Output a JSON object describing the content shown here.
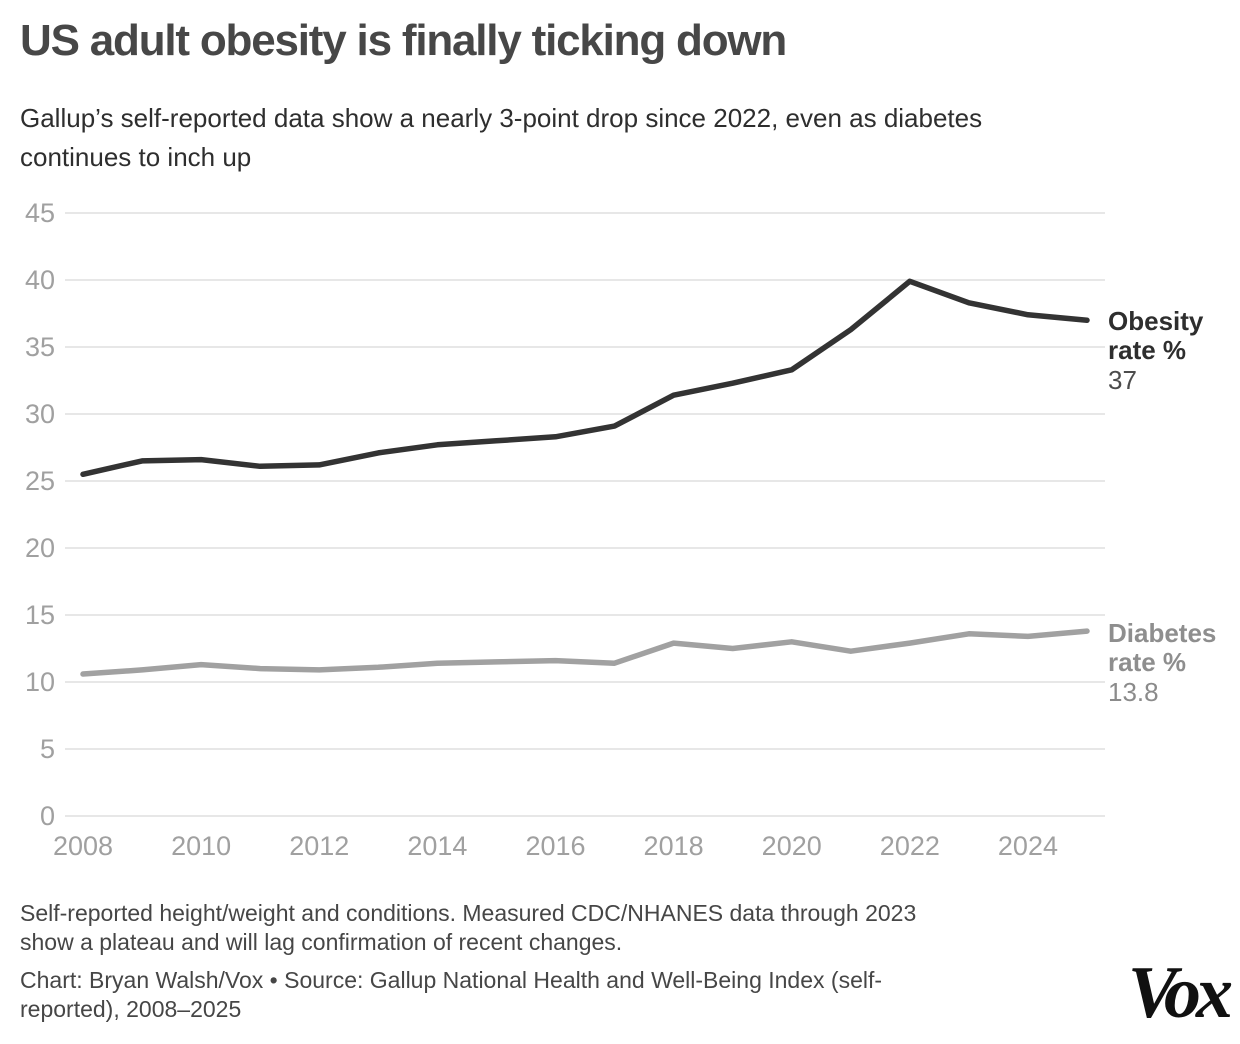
{
  "header": {
    "title": "US adult obesity is finally ticking down",
    "subtitle_lines": [
      "Gallup’s self-reported data show a nearly 3-point drop since 2022, even as diabetes",
      "continues to inch up"
    ]
  },
  "chart_data": {
    "type": "line",
    "title": "US adult obesity is finally ticking down",
    "x": [
      2008,
      2009,
      2010,
      2011,
      2012,
      2013,
      2014,
      2015,
      2016,
      2017,
      2018,
      2019,
      2020,
      2021,
      2022,
      2023,
      2024,
      2025
    ],
    "series": [
      {
        "name": "Obesity rate %",
        "color": "#333333",
        "end_value_label": "37",
        "values": [
          25.5,
          26.5,
          26.6,
          26.1,
          26.2,
          27.1,
          27.7,
          28.0,
          28.3,
          29.1,
          31.4,
          32.3,
          33.3,
          36.3,
          39.9,
          38.3,
          37.4,
          37.0
        ]
      },
      {
        "name": "Diabetes rate %",
        "color": "#a1a1a1",
        "end_value_label": "13.8",
        "values": [
          10.6,
          10.9,
          11.3,
          11.0,
          10.9,
          11.1,
          11.4,
          11.5,
          11.6,
          11.4,
          12.9,
          12.5,
          13.0,
          12.3,
          12.9,
          13.6,
          13.4,
          13.8
        ]
      }
    ],
    "xlim": [
      2008,
      2025
    ],
    "ylim": [
      0,
      45
    ],
    "yticks": [
      0,
      5,
      10,
      15,
      20,
      25,
      30,
      35,
      40,
      45
    ],
    "xticks": [
      2008,
      2010,
      2012,
      2014,
      2016,
      2018,
      2020,
      2022,
      2024
    ],
    "grid": "horizontal-only",
    "legend_position": "end-of-line labels at right"
  },
  "series_labels": {
    "obesity": {
      "name_lines": [
        "Obesity",
        "rate %"
      ],
      "value": "37"
    },
    "diabetes": {
      "name_lines": [
        "Diabetes",
        "rate %"
      ],
      "value": "13.8"
    }
  },
  "footer": {
    "note_lines": [
      "Self-reported height/weight and conditions. Measured CDC/NHANES data through 2023",
      "show a plateau and will lag confirmation of recent changes."
    ],
    "credit_lines": [
      "Chart: Bryan Walsh/Vox • Source: Gallup National Health and Well-Being Index (self-",
      "reported), 2008–2025"
    ],
    "logo_text": "Vox"
  },
  "colors": {
    "grid": "#e7e7e7",
    "axis_text": "#a0a0a0",
    "obesity_line": "#333333",
    "diabetes_line": "#a1a1a1",
    "title_text": "#474747",
    "logo": "#111111"
  }
}
